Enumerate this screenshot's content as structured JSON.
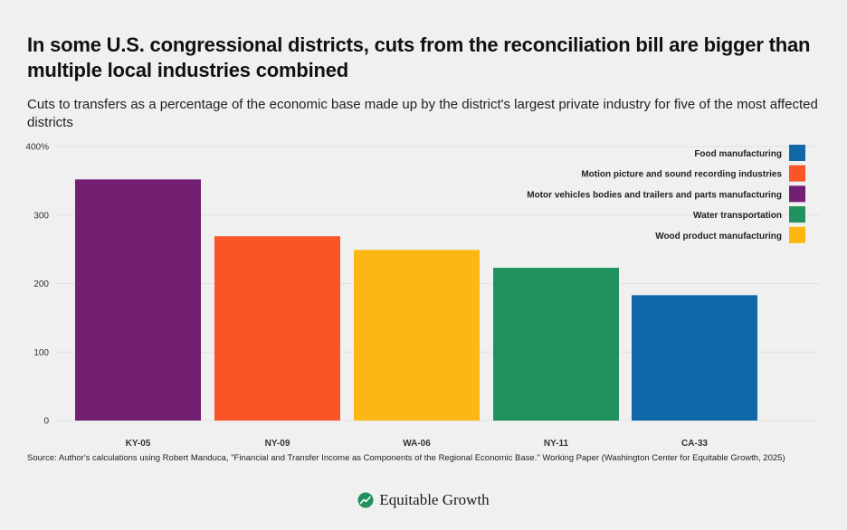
{
  "header": {
    "title": "In some U.S. congressional districts, cuts from the reconciliation bill are bigger than multiple local industries combined",
    "subtitle": "Cuts to transfers as a percentage of the economic base made up by the district's largest private industry for five of the most affected districts"
  },
  "chart_data": {
    "type": "bar",
    "categories": [
      "KY-05",
      "NY-09",
      "WA-06",
      "NY-11",
      "CA-33"
    ],
    "values": [
      352,
      269,
      249,
      223,
      183
    ],
    "industries": [
      "Motor vehicles bodies and trailers and parts manufacturing",
      "Motion picture and sound recording industries",
      "Wood product manufacturing",
      "Water transportation",
      "Food manufacturing"
    ],
    "ylim": [
      0,
      400
    ],
    "yticks": [
      0,
      100,
      200,
      300,
      400
    ],
    "ytick_labels": [
      "0",
      "100",
      "200",
      "300",
      "400%"
    ],
    "xlabel": "",
    "ylabel": "",
    "grid": true,
    "legend_position": "top-right",
    "legend": [
      {
        "label": "Food manufacturing",
        "color": "#1068a8"
      },
      {
        "label": "Motion picture and sound recording industries",
        "color": "#f95527"
      },
      {
        "label": "Motor vehicles bodies and trailers and parts manufacturing",
        "color": "#731f72"
      },
      {
        "label": "Water transportation",
        "color": "#21915e"
      },
      {
        "label": "Wood product manufacturing",
        "color": "#fdb714"
      }
    ]
  },
  "colors": {
    "food": "#1068a8",
    "motion": "#f95527",
    "motor": "#731f72",
    "water": "#21915e",
    "wood": "#fdb714",
    "background": "#f0f0f0",
    "logo": "#21915e"
  },
  "source": "Source: Author's calculations using Robert Manduca, \"Financial and Transfer Income as Components of the Regional Economic Base.\" Working Paper (Washington Center for Equitable Growth, 2025)",
  "footer": {
    "logo_icon": "line-chart-leaf-icon",
    "brand": "Equitable Growth"
  }
}
